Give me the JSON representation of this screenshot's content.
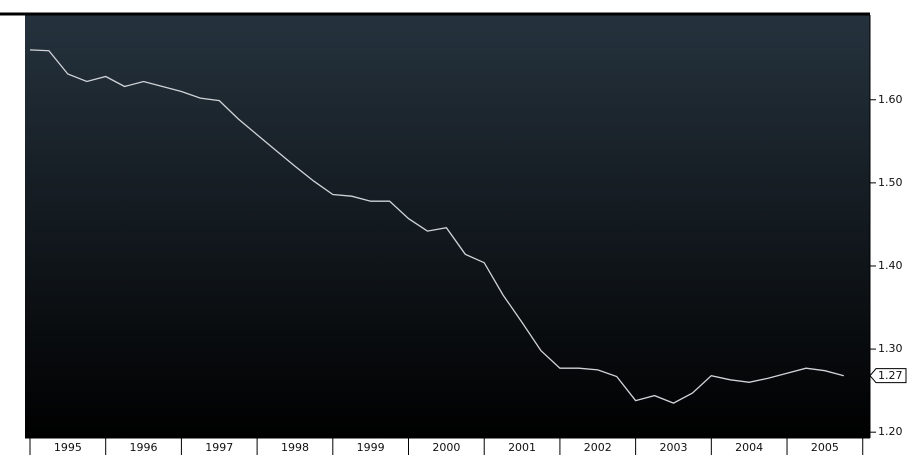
{
  "chart_data": {
    "type": "line",
    "x": [
      1995,
      1995.25,
      1995.5,
      1995.75,
      1996,
      1996.25,
      1996.5,
      1996.75,
      1997,
      1997.25,
      1997.5,
      1997.75,
      1998,
      1998.25,
      1998.5,
      1998.75,
      1999,
      1999.25,
      1999.5,
      1999.75,
      2000,
      2000.25,
      2000.5,
      2000.75,
      2001,
      2001.25,
      2001.5,
      2001.75,
      2002,
      2002.25,
      2002.5,
      2002.75,
      2003,
      2003.25,
      2003.5,
      2003.75,
      2004,
      2004.25,
      2004.5,
      2004.75,
      2005,
      2005.25,
      2005.5,
      2005.75
    ],
    "series": [
      {
        "color": "#d0d4d8",
        "values": [
          1.66,
          1.659,
          1.631,
          1.622,
          1.628,
          1.616,
          1.622,
          1.616,
          1.61,
          1.602,
          1.599,
          1.577,
          1.558,
          1.539,
          1.52,
          1.502,
          1.486,
          1.484,
          1.478,
          1.478,
          1.457,
          1.442,
          1.446,
          1.414,
          1.404,
          1.365,
          1.332,
          1.298,
          1.277,
          1.277,
          1.275,
          1.267,
          1.238,
          1.244,
          1.235,
          1.247,
          1.268,
          1.263,
          1.26,
          1.265,
          1.271,
          1.277,
          1.274,
          1.268
        ]
      }
    ],
    "last_value_label": "1.27",
    "xlim": [
      1994.934,
      2006.096
    ],
    "xticks": [
      1995,
      1996,
      1997,
      1998,
      1999,
      2000,
      2001,
      2002,
      2003,
      2004,
      2005
    ],
    "ylim": [
      1.193,
      1.702
    ],
    "yticks": [
      {
        "value": 1.2,
        "label": "1.20"
      },
      {
        "value": 1.3,
        "label": "1.30"
      },
      {
        "value": 1.4,
        "label": "1.40"
      },
      {
        "value": 1.5,
        "label": "1.50"
      },
      {
        "value": 1.6,
        "label": "1.60"
      }
    ],
    "y_axis_side": "right"
  }
}
